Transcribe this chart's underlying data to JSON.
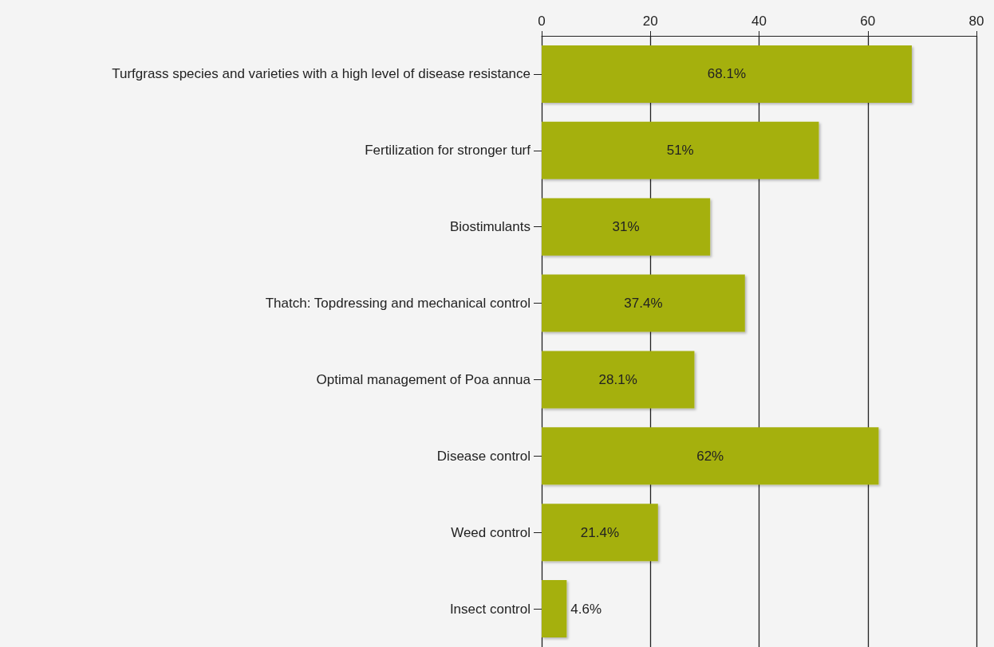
{
  "chart_data": {
    "type": "bar",
    "orientation": "horizontal",
    "categories": [
      "Turfgrass species and varieties with a high level of disease resistance",
      "Fertilization for stronger turf",
      "Biostimulants",
      "Thatch: Topdressing and mechanical control",
      "Optimal management of Poa annua",
      "Disease control",
      "Weed control",
      "Insect control"
    ],
    "values": [
      68.1,
      51,
      31,
      37.4,
      28.1,
      62,
      21.4,
      4.6
    ],
    "value_labels": [
      "68.1%",
      "51%",
      "31%",
      "37.4%",
      "28.1%",
      "62%",
      "21.4%",
      "4.6%"
    ],
    "color": "#a5b00f",
    "xlim": [
      0,
      80
    ],
    "xticks": [
      0,
      20,
      40,
      60,
      80
    ],
    "grid": "x"
  }
}
